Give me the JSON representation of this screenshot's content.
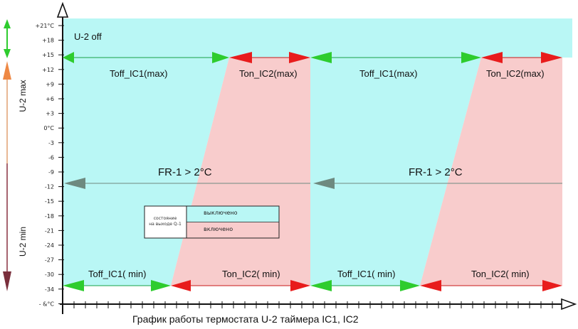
{
  "colors": {
    "off_zone": "#b9f7f5",
    "on_zone": "#f8cccc",
    "green_arrow": "#2ecc2e",
    "red_arrow": "#e81c1c",
    "line_green": "#18a048",
    "line_red": "#c81818",
    "gray_arrow": "#6e8a80",
    "axis": "#111111"
  },
  "axis": {
    "ticks": [
      "+21°C",
      "+18",
      "+15",
      "+12",
      "+9",
      "+6",
      "+3",
      "0°C",
      "-3",
      "-6",
      "-9",
      "-12",
      "-15",
      "-18",
      "-21",
      "-24",
      "-27",
      "-30",
      "-34",
      "- &°C"
    ]
  },
  "labels": {
    "u2_off": "U-2 off",
    "u2_max": "U-2 max",
    "u2_min": "U-2 min",
    "toff_max_1": "Toff_IC1(max)",
    "ton_max_1": "Ton_IC2(max)",
    "toff_max_2": "Toff_IC1(max)",
    "ton_max_2": "Ton_IC2(max)",
    "toff_min_1": "Toff_IC1( min)",
    "ton_min_1": "Ton_IC2( min)",
    "toff_min_2": "Toff_IC1( min)",
    "ton_min_2": "Ton_IC2( min)",
    "fr_1": "FR-1 > 2°C",
    "fr_2": "FR-1 > 2°C"
  },
  "legend": {
    "caption_line1": "состояние",
    "caption_line2": "на выходе Q-1",
    "off_label": "выключено",
    "on_label": "включено"
  },
  "caption": "График работы термостата U-2 таймера IC1, IC2"
}
